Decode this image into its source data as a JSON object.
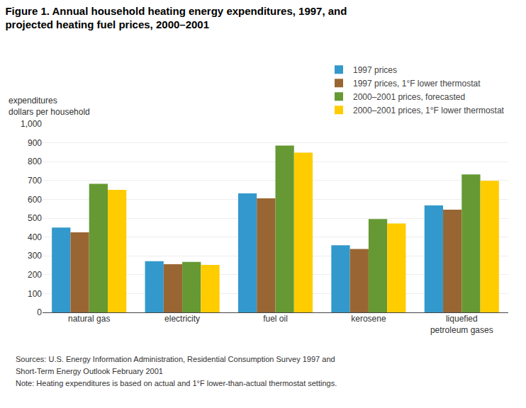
{
  "chart_data": {
    "type": "bar",
    "title": "Figure 1. Annual household heating energy expenditures, 1997, and\nprojected heating fuel prices, 2000–2001",
    "ylabel": "expenditures\ndollars per household",
    "categories": [
      "natural gas",
      "electricity",
      "fuel oil",
      "kerosene",
      "liquefied\npetroleum gases"
    ],
    "series": [
      {
        "name": "1997 prices",
        "color": "#3399CC",
        "values": [
          450,
          272,
          632,
          356,
          568
        ]
      },
      {
        "name": "1997 prices, 1°F lower thermostat",
        "color": "#996633",
        "values": [
          425,
          256,
          605,
          336,
          545
        ]
      },
      {
        "name": "2000–2001 prices, forecasted",
        "color": "#669933",
        "values": [
          682,
          268,
          885,
          495,
          732
        ]
      },
      {
        "name": "2000–2001 prices, 1°F lower thermostat",
        "color": "#FFCC00",
        "values": [
          650,
          252,
          848,
          472,
          698
        ]
      }
    ],
    "ylim": [
      0,
      1000
    ],
    "yticks": [
      0,
      100,
      200,
      300,
      400,
      500,
      600,
      700,
      800,
      900,
      {
        "value": 1000,
        "label": "1,000"
      }
    ],
    "grid": true,
    "legend": "upper right",
    "annotations": [
      "Sources: U.S. Energy Information Administration, Residential Consumption Survey 1997 and",
      "Short-Term Energy Outlook February 2001",
      "Note: Heating expenditures is based on actual and 1°F lower-than-actual thermostat settings."
    ]
  }
}
